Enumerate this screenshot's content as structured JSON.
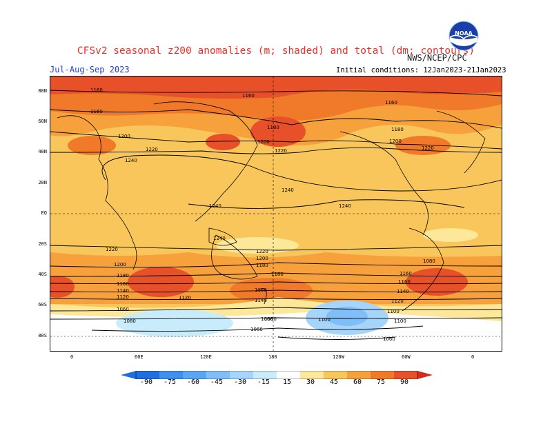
{
  "header": {
    "title": "CFSv2 seasonal z200 anomalies (m; shaded) and total (dm; contours)",
    "season": "Jul-Aug-Sep 2023",
    "agency": "NWS/NCEP/CPC",
    "initial_conditions": "Initial conditions: 12Jan2023-21Jan2023",
    "logo_text": "NOAA"
  },
  "axes": {
    "lat_labels": [
      "80N",
      "60N",
      "40N",
      "20N",
      "EQ",
      "20S",
      "40S",
      "60S",
      "80S"
    ],
    "lon_labels": [
      "0",
      "60E",
      "120E",
      "180",
      "120W",
      "60W",
      "0"
    ]
  },
  "colorbar": {
    "labels": [
      "-90",
      "-75",
      "-60",
      "-45",
      "-30",
      "-15",
      "15",
      "30",
      "45",
      "60",
      "75",
      "90"
    ],
    "colors": [
      "#1f6fe0",
      "#3f8ff0",
      "#5aa6f5",
      "#7fbef8",
      "#a5d5fb",
      "#c8ecfc",
      "#ffffff",
      "#fde89a",
      "#f9c65b",
      "#f7a13c",
      "#f07a2a",
      "#e8502a",
      "#d62a20"
    ]
  },
  "contours": {
    "labels": [
      "1160",
      "1160",
      "1160",
      "1160",
      "1180",
      "1180",
      "1200",
      "1200",
      "1200",
      "1220",
      "1220",
      "1220",
      "1240",
      "1240",
      "1240",
      "1240",
      "1240",
      "1220",
      "1200",
      "1180",
      "1220",
      "1200",
      "1180",
      "1160",
      "1140",
      "1120",
      "1180",
      "1160",
      "1140",
      "1120",
      "1100",
      "1060",
      "1080",
      "1080",
      "1060",
      "1060",
      "1100",
      "1160",
      "1140",
      "1120",
      "1100",
      "1060",
      "1080",
      "1160"
    ]
  }
}
